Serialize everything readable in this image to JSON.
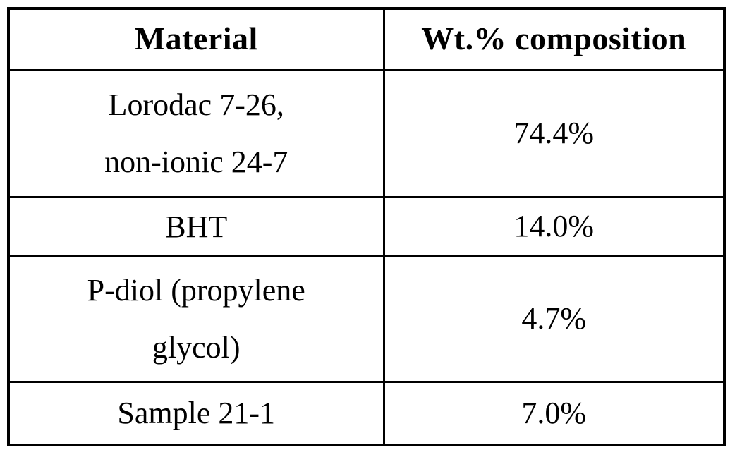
{
  "table": {
    "columns": [
      "Material",
      "Wt.% composition"
    ],
    "rows": [
      {
        "material": "Lorodac 7-26,\nnon-ionic 24-7",
        "composition": "74.4%"
      },
      {
        "material": "BHT",
        "composition": "14.0%"
      },
      {
        "material": "P-diol (propylene\nglycol)",
        "composition": "4.7%"
      },
      {
        "material": "Sample 21-1",
        "composition": "7.0%"
      }
    ]
  },
  "colors": {
    "border": "#000000",
    "text": "#000000",
    "background": "#ffffff"
  }
}
